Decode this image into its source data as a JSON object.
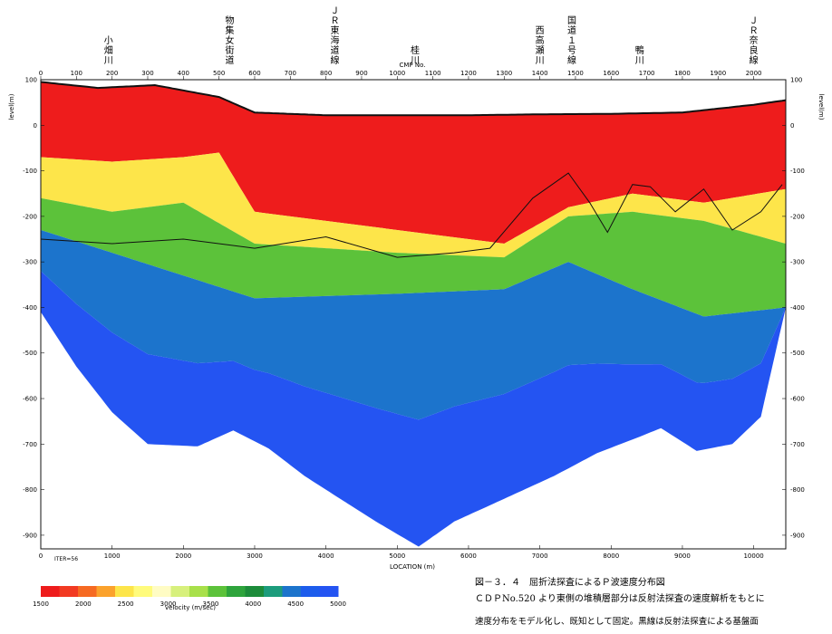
{
  "chart_data": {
    "type": "heatmap",
    "title": "",
    "top_axis": {
      "label": "CMP No.",
      "ticks": [
        0,
        100,
        200,
        300,
        400,
        500,
        600,
        700,
        800,
        900,
        1000,
        1100,
        1200,
        1300,
        1400,
        1500,
        1600,
        1700,
        1800,
        1900,
        2000
      ],
      "range": [
        0,
        2090
      ]
    },
    "bottom_axis": {
      "label": "LOCATION (m)",
      "ticks": [
        0,
        1000,
        2000,
        3000,
        4000,
        5000,
        6000,
        7000,
        8000,
        9000,
        10000
      ],
      "range": [
        0,
        10450
      ],
      "corner_text": "ITER=56"
    },
    "left_axis": {
      "label": "level(m)",
      "ticks": [
        100,
        0,
        -100,
        -200,
        -300,
        -400,
        -500,
        -600,
        -700,
        -800,
        -900
      ],
      "range": [
        -930,
        100
      ]
    },
    "right_axis": {
      "label": "level(m)",
      "ticks": [
        100,
        0,
        -100,
        -200,
        -300,
        -400,
        -500,
        -600,
        -700,
        -800,
        -900
      ]
    },
    "place_labels": [
      {
        "name": "小畑川",
        "x_cmp": 190
      },
      {
        "name": "物集女街道",
        "x_cmp": 530
      },
      {
        "name": "ＪＲ東海道線",
        "x_cmp": 825
      },
      {
        "name": "桂川",
        "x_cmp": 1050
      },
      {
        "name": "西高瀬川",
        "x_cmp": 1400
      },
      {
        "name": "国道１号線",
        "x_cmp": 1490
      },
      {
        "name": "鴨川",
        "x_cmp": 1680
      },
      {
        "name": "ＪＲ奈良線",
        "x_cmp": 2000
      }
    ],
    "colorbar": {
      "label": "velocity (m/sec)",
      "ticks": [
        1500,
        2000,
        2500,
        3000,
        3500,
        4000,
        4500,
        5000
      ],
      "range": [
        1500,
        5000
      ],
      "colors": [
        "#ee1c1c",
        "#f23a22",
        "#f66a22",
        "#fba22c",
        "#fde54a",
        "#fffb7c",
        "#fffcc4",
        "#d7f07c",
        "#a8e04a",
        "#5cc23a",
        "#2ea43c",
        "#1c8c3a",
        "#1c9c7c",
        "#1c74cc",
        "#1c5cec",
        "#2454f2"
      ]
    },
    "surface_profile": [
      [
        0,
        95
      ],
      [
        800,
        82
      ],
      [
        1600,
        88
      ],
      [
        2500,
        62
      ],
      [
        3000,
        28
      ],
      [
        4000,
        22
      ],
      [
        5000,
        22
      ],
      [
        6000,
        22
      ],
      [
        7000,
        24
      ],
      [
        8000,
        25
      ],
      [
        9000,
        28
      ],
      [
        10000,
        45
      ],
      [
        10450,
        55
      ]
    ],
    "base_profile": [
      [
        0,
        -410
      ],
      [
        500,
        -530
      ],
      [
        1000,
        -630
      ],
      [
        1500,
        -700
      ],
      [
        2200,
        -705
      ],
      [
        2700,
        -670
      ],
      [
        3200,
        -710
      ],
      [
        3700,
        -770
      ],
      [
        4200,
        -820
      ],
      [
        4700,
        -870
      ],
      [
        5300,
        -925
      ],
      [
        5800,
        -870
      ],
      [
        6500,
        -820
      ],
      [
        7200,
        -770
      ],
      [
        7800,
        -720
      ],
      [
        8300,
        -690
      ],
      [
        8700,
        -665
      ],
      [
        9200,
        -715
      ],
      [
        9700,
        -700
      ],
      [
        10100,
        -640
      ],
      [
        10450,
        -400
      ]
    ],
    "interface_profile": [
      [
        0,
        -250
      ],
      [
        1000,
        -260
      ],
      [
        2000,
        -250
      ],
      [
        3000,
        -270
      ],
      [
        4000,
        -245
      ],
      [
        5000,
        -290
      ],
      [
        5800,
        -280
      ],
      [
        6300,
        -270
      ],
      [
        6900,
        -160
      ],
      [
        7400,
        -105
      ],
      [
        7700,
        -170
      ],
      [
        7950,
        -235
      ],
      [
        8300,
        -130
      ],
      [
        8550,
        -135
      ],
      [
        8900,
        -190
      ],
      [
        9300,
        -140
      ],
      [
        9700,
        -230
      ],
      [
        10100,
        -190
      ],
      [
        10400,
        -130
      ]
    ],
    "zones": [
      {
        "name": "red",
        "top_thickness": 0,
        "depth": [
          [
            0,
            -70
          ],
          [
            1000,
            -80
          ],
          [
            2000,
            -70
          ],
          [
            2500,
            -60
          ],
          [
            3000,
            -190
          ],
          [
            5000,
            -230
          ],
          [
            6500,
            -260
          ],
          [
            7400,
            -180
          ],
          [
            8300,
            -150
          ],
          [
            9300,
            -170
          ],
          [
            10450,
            -140
          ]
        ]
      },
      {
        "name": "yellow",
        "depth": [
          [
            0,
            -160
          ],
          [
            1000,
            -190
          ],
          [
            2000,
            -170
          ],
          [
            3000,
            -260
          ],
          [
            5000,
            -280
          ],
          [
            6500,
            -290
          ],
          [
            7400,
            -200
          ],
          [
            8300,
            -190
          ],
          [
            9300,
            -210
          ],
          [
            10450,
            -260
          ]
        ]
      },
      {
        "name": "green",
        "depth": [
          [
            0,
            -230
          ],
          [
            1000,
            -280
          ],
          [
            2000,
            -330
          ],
          [
            3000,
            -380
          ],
          [
            5000,
            -370
          ],
          [
            6500,
            -360
          ],
          [
            7400,
            -300
          ],
          [
            8300,
            -360
          ],
          [
            9300,
            -420
          ],
          [
            10450,
            -400
          ]
        ]
      }
    ]
  },
  "caption": {
    "figure": "図－３．４　屈折法探査によるＰ波速度分布図",
    "line1": "ＣＤＰNo.520 より東側の堆積層部分は反射法探査の速度解析をもとに",
    "line2": "速度分布をモデル化し、既知として固定。黒線は反射法探査による基盤面"
  }
}
